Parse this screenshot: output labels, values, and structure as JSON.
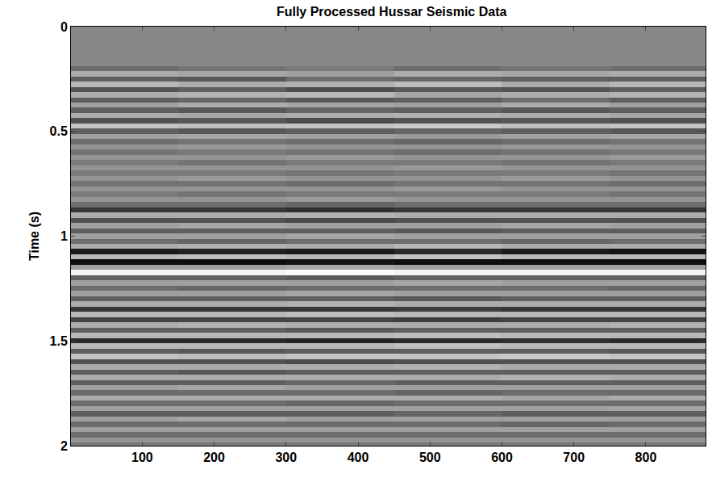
{
  "chart_data": {
    "type": "heatmap",
    "title": "Fully Processed Hussar Seismic Data",
    "ylabel": "Time (s)",
    "xlim": [
      1,
      883
    ],
    "xticks": [
      100,
      200,
      300,
      400,
      500,
      600,
      700,
      800
    ],
    "ylim": [
      2,
      0
    ],
    "yticks": [
      0,
      0.5,
      1,
      1.5,
      2
    ],
    "grid": false,
    "zlim": [
      -1,
      1
    ],
    "x": [
      75,
      225,
      375,
      525,
      675,
      825
    ],
    "y": [
      0,
      0.025,
      0.05,
      0.075,
      0.1,
      0.125,
      0.15,
      0.175,
      0.2,
      0.225,
      0.25,
      0.275,
      0.3,
      0.325,
      0.35,
      0.375,
      0.4,
      0.425,
      0.45,
      0.475,
      0.5,
      0.525,
      0.55,
      0.575,
      0.6,
      0.625,
      0.65,
      0.675,
      0.7,
      0.725,
      0.75,
      0.775,
      0.8,
      0.825,
      0.85,
      0.875,
      0.9,
      0.925,
      0.95,
      0.975,
      1.0,
      1.025,
      1.05,
      1.075,
      1.1,
      1.125,
      1.15,
      1.175,
      1.2,
      1.225,
      1.25,
      1.275,
      1.3,
      1.325,
      1.35,
      1.375,
      1.4,
      1.425,
      1.45,
      1.475,
      1.5,
      1.525,
      1.55,
      1.575,
      1.6,
      1.625,
      1.65,
      1.675,
      1.7,
      1.725,
      1.75,
      1.775,
      1.8,
      1.825,
      1.85,
      1.875,
      1.9,
      1.925,
      1.95,
      1.975,
      2.0
    ],
    "z": [
      [
        0,
        0,
        0,
        0,
        0,
        0
      ],
      [
        0,
        0,
        0,
        0,
        0,
        0
      ],
      [
        0,
        0,
        0,
        0,
        0,
        0
      ],
      [
        0,
        0,
        0,
        0,
        0,
        0
      ],
      [
        0,
        0,
        0,
        0,
        0,
        0
      ],
      [
        0,
        0,
        0,
        0,
        0,
        0
      ],
      [
        0,
        0,
        0,
        0,
        0,
        0
      ],
      [
        0,
        0,
        0,
        0,
        0,
        0
      ],
      [
        -0.2,
        -0.15,
        -0.1,
        -0.2,
        -0.15,
        -0.2
      ],
      [
        0.3,
        0.25,
        0.2,
        0.3,
        0.25,
        0.3
      ],
      [
        -0.3,
        -0.35,
        -0.2,
        -0.25,
        -0.3,
        -0.3
      ],
      [
        0.4,
        0.3,
        0.35,
        0.45,
        0.3,
        0.4
      ],
      [
        -0.4,
        -0.3,
        -0.45,
        -0.35,
        -0.4,
        -0.3
      ],
      [
        0.3,
        0.35,
        0.4,
        0.25,
        0.3,
        0.35
      ],
      [
        -0.3,
        -0.25,
        -0.35,
        -0.3,
        -0.2,
        -0.3
      ],
      [
        0.2,
        0.3,
        0.25,
        0.2,
        0.3,
        0.2
      ],
      [
        -0.3,
        -0.35,
        -0.25,
        -0.3,
        -0.35,
        -0.3
      ],
      [
        0.3,
        0.25,
        0.3,
        0.35,
        0.3,
        0.25
      ],
      [
        -0.4,
        -0.35,
        -0.45,
        -0.4,
        -0.35,
        -0.4
      ],
      [
        0.5,
        0.45,
        0.5,
        0.55,
        0.45,
        0.5
      ],
      [
        -0.3,
        -0.35,
        -0.3,
        -0.25,
        -0.3,
        -0.35
      ],
      [
        0.2,
        0.25,
        0.2,
        0.15,
        0.2,
        0.25
      ],
      [
        -0.2,
        -0.15,
        -0.2,
        -0.25,
        -0.2,
        -0.15
      ],
      [
        0.1,
        0.15,
        0.1,
        0.1,
        0.15,
        0.1
      ],
      [
        -0.15,
        -0.1,
        -0.15,
        -0.2,
        -0.15,
        -0.1
      ],
      [
        0.1,
        0.1,
        0.15,
        0.1,
        0.1,
        0.15
      ],
      [
        -0.1,
        -0.15,
        -0.1,
        -0.1,
        -0.15,
        -0.1
      ],
      [
        0.1,
        0.1,
        0.1,
        0.15,
        0.1,
        0.1
      ],
      [
        -0.1,
        -0.1,
        -0.15,
        -0.1,
        -0.1,
        -0.15
      ],
      [
        0.1,
        0.15,
        0.1,
        0.1,
        0.15,
        0.1
      ],
      [
        -0.15,
        -0.15,
        -0.2,
        -0.15,
        -0.15,
        -0.2
      ],
      [
        0.1,
        0.1,
        0.1,
        0.15,
        0.1,
        0.1
      ],
      [
        -0.1,
        -0.15,
        -0.1,
        -0.1,
        -0.1,
        -0.15
      ],
      [
        0.1,
        0.1,
        0.15,
        0.1,
        0.1,
        0.1
      ],
      [
        -0.2,
        -0.2,
        -0.25,
        -0.2,
        -0.2,
        -0.2
      ],
      [
        -0.6,
        -0.6,
        -0.65,
        -0.6,
        -0.6,
        -0.6
      ],
      [
        0.3,
        0.3,
        0.35,
        0.3,
        0.3,
        0.3
      ],
      [
        -0.4,
        -0.4,
        -0.45,
        -0.4,
        -0.4,
        -0.4
      ],
      [
        0.2,
        0.25,
        0.2,
        0.2,
        0.25,
        0.2
      ],
      [
        -0.3,
        -0.3,
        -0.3,
        -0.35,
        -0.3,
        -0.3
      ],
      [
        0.2,
        0.2,
        0.25,
        0.2,
        0.2,
        0.2
      ],
      [
        -0.2,
        -0.25,
        -0.2,
        -0.2,
        -0.25,
        -0.2
      ],
      [
        0.3,
        0.35,
        0.3,
        0.4,
        0.3,
        0.3
      ],
      [
        -0.8,
        -0.75,
        -0.8,
        -0.7,
        -0.8,
        -0.85
      ],
      [
        0.4,
        0.45,
        0.4,
        0.5,
        0.4,
        0.4
      ],
      [
        -0.9,
        -0.9,
        -0.85,
        -0.9,
        -0.9,
        -0.9
      ],
      [
        0.2,
        0.2,
        0.25,
        0.2,
        0.2,
        0.2
      ],
      [
        0.9,
        0.9,
        0.95,
        0.9,
        0.9,
        0.9
      ],
      [
        -0.3,
        -0.3,
        -0.35,
        -0.3,
        -0.3,
        -0.3
      ],
      [
        0.2,
        0.2,
        0.2,
        0.25,
        0.2,
        0.2
      ],
      [
        -0.2,
        -0.25,
        -0.2,
        -0.2,
        -0.2,
        -0.25
      ],
      [
        0.2,
        0.2,
        0.25,
        0.2,
        0.2,
        0.2
      ],
      [
        -0.3,
        -0.3,
        -0.3,
        -0.35,
        -0.3,
        -0.3
      ],
      [
        0.3,
        0.3,
        0.35,
        0.3,
        0.3,
        0.3
      ],
      [
        -0.6,
        -0.6,
        -0.6,
        -0.55,
        -0.6,
        -0.6
      ],
      [
        0.4,
        0.4,
        0.45,
        0.4,
        0.4,
        0.4
      ],
      [
        -0.5,
        -0.5,
        -0.5,
        -0.55,
        -0.5,
        -0.5
      ],
      [
        0.3,
        0.35,
        0.3,
        0.3,
        0.3,
        0.35
      ],
      [
        -0.3,
        -0.3,
        -0.35,
        -0.3,
        -0.3,
        -0.3
      ],
      [
        0.4,
        0.4,
        0.4,
        0.45,
        0.4,
        0.4
      ],
      [
        -0.7,
        -0.7,
        -0.75,
        -0.7,
        -0.65,
        -0.7
      ],
      [
        0.4,
        0.4,
        0.4,
        0.45,
        0.4,
        0.4
      ],
      [
        -0.3,
        -0.35,
        -0.3,
        -0.3,
        -0.3,
        -0.35
      ],
      [
        0.5,
        0.45,
        0.5,
        0.5,
        0.55,
        0.5
      ],
      [
        -0.4,
        -0.4,
        -0.45,
        -0.4,
        -0.4,
        -0.4
      ],
      [
        0.3,
        0.3,
        0.3,
        0.35,
        0.3,
        0.3
      ],
      [
        -0.3,
        -0.35,
        -0.3,
        -0.3,
        -0.3,
        -0.3
      ],
      [
        0.3,
        0.3,
        0.3,
        0.3,
        0.35,
        0.3
      ],
      [
        -0.3,
        -0.3,
        -0.25,
        -0.3,
        -0.3,
        -0.3
      ],
      [
        0.2,
        0.25,
        0.2,
        0.2,
        0.2,
        0.2
      ],
      [
        -0.2,
        -0.2,
        -0.2,
        -0.25,
        -0.2,
        -0.2
      ],
      [
        0.3,
        0.3,
        0.3,
        0.3,
        0.25,
        0.3
      ],
      [
        -0.2,
        -0.2,
        -0.25,
        -0.2,
        -0.2,
        -0.2
      ],
      [
        0.2,
        0.2,
        0.2,
        0.2,
        0.2,
        0.25
      ],
      [
        -0.3,
        -0.3,
        -0.3,
        -0.25,
        -0.3,
        -0.3
      ],
      [
        0.2,
        0.25,
        0.2,
        0.2,
        0.2,
        0.2
      ],
      [
        -0.2,
        -0.2,
        -0.2,
        -0.2,
        -0.25,
        -0.2
      ],
      [
        0.2,
        0.2,
        0.2,
        0.2,
        0.2,
        0.2
      ],
      [
        -0.2,
        -0.2,
        -0.2,
        -0.2,
        -0.2,
        -0.2
      ],
      [
        0.1,
        0.1,
        0.1,
        0.1,
        0.1,
        0.1
      ],
      [
        -0.1,
        -0.1,
        -0.1,
        -0.1,
        -0.1,
        -0.1
      ]
    ]
  }
}
